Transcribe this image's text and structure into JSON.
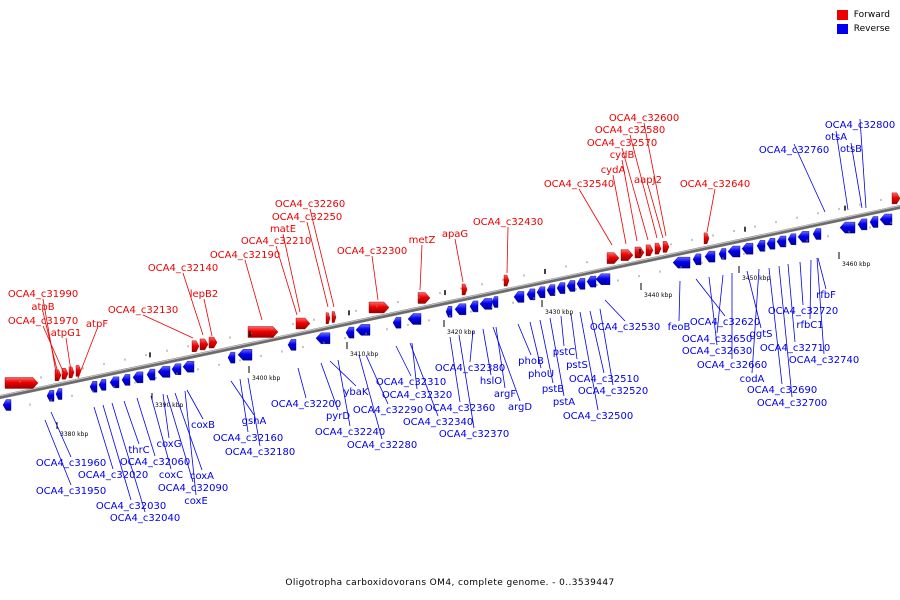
{
  "legend": {
    "forward_label": "Forward",
    "reverse_label": "Reverse",
    "forward_color": "#ff0000",
    "reverse_color": "#0000ff"
  },
  "caption": "Oligotropha carboxidovorans OM4, complete genome. - 0..3539447",
  "scale_labels": [
    "3380 kbp",
    "3390 kbp",
    "3400 kbp",
    "3410 kbp",
    "3420 kbp",
    "3430 kbp",
    "3440 kbp",
    "3450 kbp",
    "3460 kbp"
  ],
  "forward_labels": [
    "OCA4_c31990",
    "atpB",
    "OCA4_c31970",
    "atpG1",
    "atpF",
    "OCA4_c32130",
    "OCA4_c32140",
    "lepB2",
    "OCA4_c32190",
    "OCA4_c32210",
    "matE",
    "OCA4_c32250",
    "OCA4_c32260",
    "OCA4_c32300",
    "metZ",
    "apaG",
    "OCA4_c32430",
    "OCA4_c32540",
    "cydA",
    "cydB",
    "OCA4_c32570",
    "OCA4_c32580",
    "OCA4_c32600",
    "aapJ2",
    "OCA4_c32640"
  ],
  "reverse_labels": [
    "OCA4_c31960",
    "OCA4_c31950",
    "OCA4_c32020",
    "OCA4_c32030",
    "OCA4_c32040",
    "thrC",
    "OCA4_c32060",
    "coxC",
    "coxG",
    "coxA",
    "OCA4_c32090",
    "coxE",
    "coxB",
    "gshA",
    "OCA4_c32160",
    "OCA4_c32180",
    "OCA4_c32200",
    "pyrD",
    "ybaK",
    "OCA4_c32240",
    "OCA4_c32280",
    "OCA4_c32290",
    "OCA4_c32310",
    "OCA4_c32320",
    "OCA4_c32340",
    "OCA4_c32360",
    "OCA4_c32370",
    "OCA4_c32380",
    "hslO",
    "argF",
    "argD",
    "phoB",
    "phoU",
    "pstB",
    "pstA",
    "pstC",
    "pstS",
    "OCA4_c32500",
    "OCA4_c32510",
    "OCA4_c32520",
    "OCA4_c32530",
    "feoB",
    "OCA4_c32620",
    "OCA4_c32630",
    "OCA4_c32650",
    "OCA4_c32660",
    "ggtS",
    "codA",
    "OCA4_c32690",
    "OCA4_c32700",
    "OCA4_c32710",
    "OCA4_c32720",
    "rfbC1",
    "OCA4_c32740",
    "rfbF",
    "OCA4_c32760",
    "otsA",
    "otsB",
    "OCA4_c32800"
  ]
}
